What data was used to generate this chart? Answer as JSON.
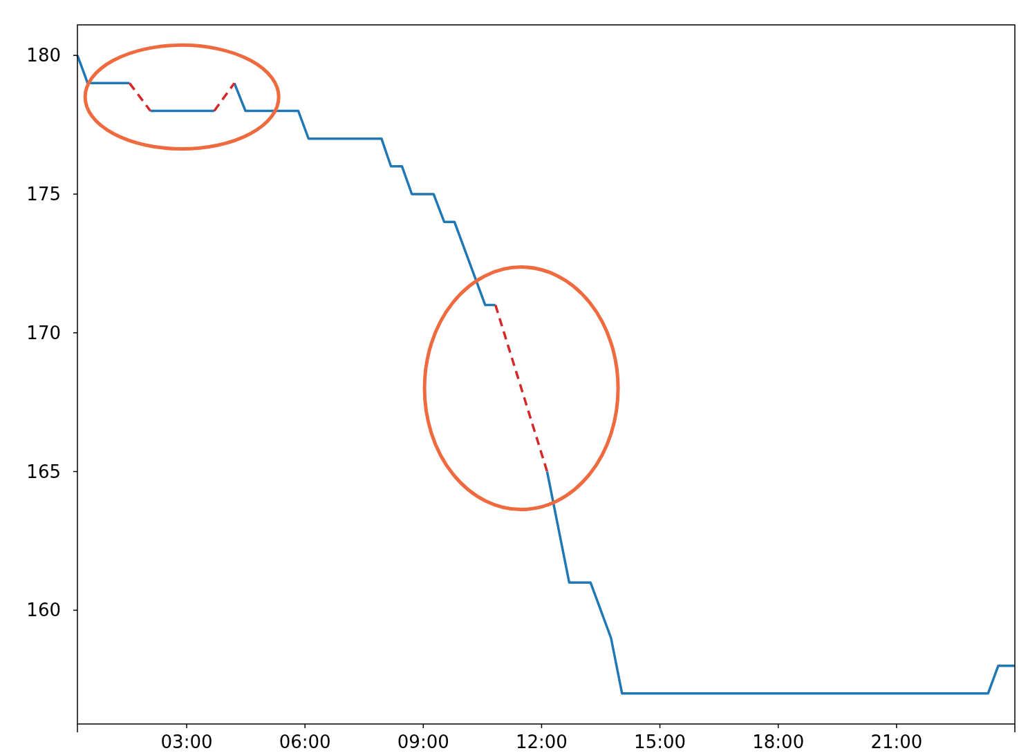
{
  "chart_data": {
    "type": "line",
    "xlim": [
      0.23,
      24
    ],
    "xticks": [
      {
        "value": 0.23,
        "label": null
      },
      {
        "value": 3,
        "label": "03:00"
      },
      {
        "value": 6,
        "label": "06:00"
      },
      {
        "value": 9,
        "label": "09:00"
      },
      {
        "value": 12,
        "label": "12:00"
      },
      {
        "value": 15,
        "label": "15:00"
      },
      {
        "value": 18,
        "label": "18:00"
      },
      {
        "value": 21,
        "label": "21:00"
      },
      {
        "value": 24,
        "label": null
      }
    ],
    "ylim": [
      155.9,
      181.1
    ],
    "yticks": [
      160,
      165,
      170,
      175,
      180
    ],
    "grid": false,
    "series": [
      {
        "color": "#1f77b4",
        "line_style": "solid",
        "x": [
          0.23,
          0.49,
          1.55
        ],
        "values": [
          180,
          179,
          179
        ]
      },
      {
        "color": "#1f77b4",
        "line_style": "solid",
        "x": [
          2.08,
          3.7
        ],
        "values": [
          178,
          178
        ]
      },
      {
        "color": "#1f77b4",
        "line_style": "solid",
        "x": [
          4.21,
          4.49,
          5.83,
          6.09,
          7.94,
          8.18,
          8.46,
          8.71,
          9.26,
          9.53,
          9.79,
          10.57,
          10.83
        ],
        "values": [
          179,
          178,
          178,
          177,
          177,
          176,
          176,
          175,
          175,
          174,
          174,
          171,
          171
        ]
      },
      {
        "color": "#1f77b4",
        "line_style": "solid",
        "x": [
          12.14,
          12.7,
          13.24,
          13.76,
          14.04,
          23.32,
          23.58,
          24.0
        ],
        "values": [
          165,
          161,
          161,
          159,
          157,
          157,
          158,
          158
        ]
      },
      {
        "color": "#d62728",
        "line_style": "dashed",
        "x": [
          1.55,
          2.08
        ],
        "values": [
          179,
          178
        ]
      },
      {
        "color": "#d62728",
        "line_style": "dashed",
        "x": [
          3.7,
          4.21
        ],
        "values": [
          178,
          179
        ]
      },
      {
        "color": "#d62728",
        "line_style": "dashed",
        "x": [
          10.83,
          12.14
        ],
        "values": [
          171,
          165
        ]
      }
    ]
  }
}
